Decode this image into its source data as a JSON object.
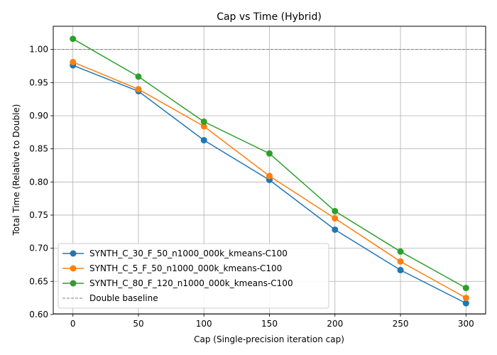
{
  "chart_data": {
    "type": "line",
    "title": "Cap vs Time (Hybrid)",
    "xlabel": "Cap (Single-precision iteration cap)",
    "ylabel": "Total Time (Relative to Double)",
    "x": [
      0,
      50,
      100,
      150,
      200,
      250,
      300
    ],
    "xlim": [
      -15,
      315
    ],
    "ylim": [
      0.601,
      1.035
    ],
    "xticks": [
      0,
      50,
      100,
      150,
      200,
      250,
      300
    ],
    "yticks": [
      0.6,
      0.65,
      0.7,
      0.75,
      0.8,
      0.85,
      0.9,
      0.95,
      1.0
    ],
    "grid": true,
    "legend_position": "lower-left",
    "series": [
      {
        "name": "SYNTH_C_30_F_50_n1000_000k_kmeans-C100",
        "color": "#1f77b4",
        "values": [
          0.976,
          0.937,
          0.863,
          0.803,
          0.728,
          0.667,
          0.617
        ]
      },
      {
        "name": "SYNTH_C_5_F_50_n1000_000k_kmeans-C100",
        "color": "#ff7f0e",
        "values": [
          0.981,
          0.94,
          0.884,
          0.809,
          0.745,
          0.68,
          0.625
        ]
      },
      {
        "name": "SYNTH_C_80_F_120_n1000_000k_kmeans-C100",
        "color": "#2ca02c",
        "values": [
          1.016,
          0.959,
          0.891,
          0.843,
          0.756,
          0.695,
          0.64
        ]
      }
    ],
    "baseline": {
      "name": "Double baseline",
      "value": 1.0,
      "color": "#808080"
    }
  }
}
